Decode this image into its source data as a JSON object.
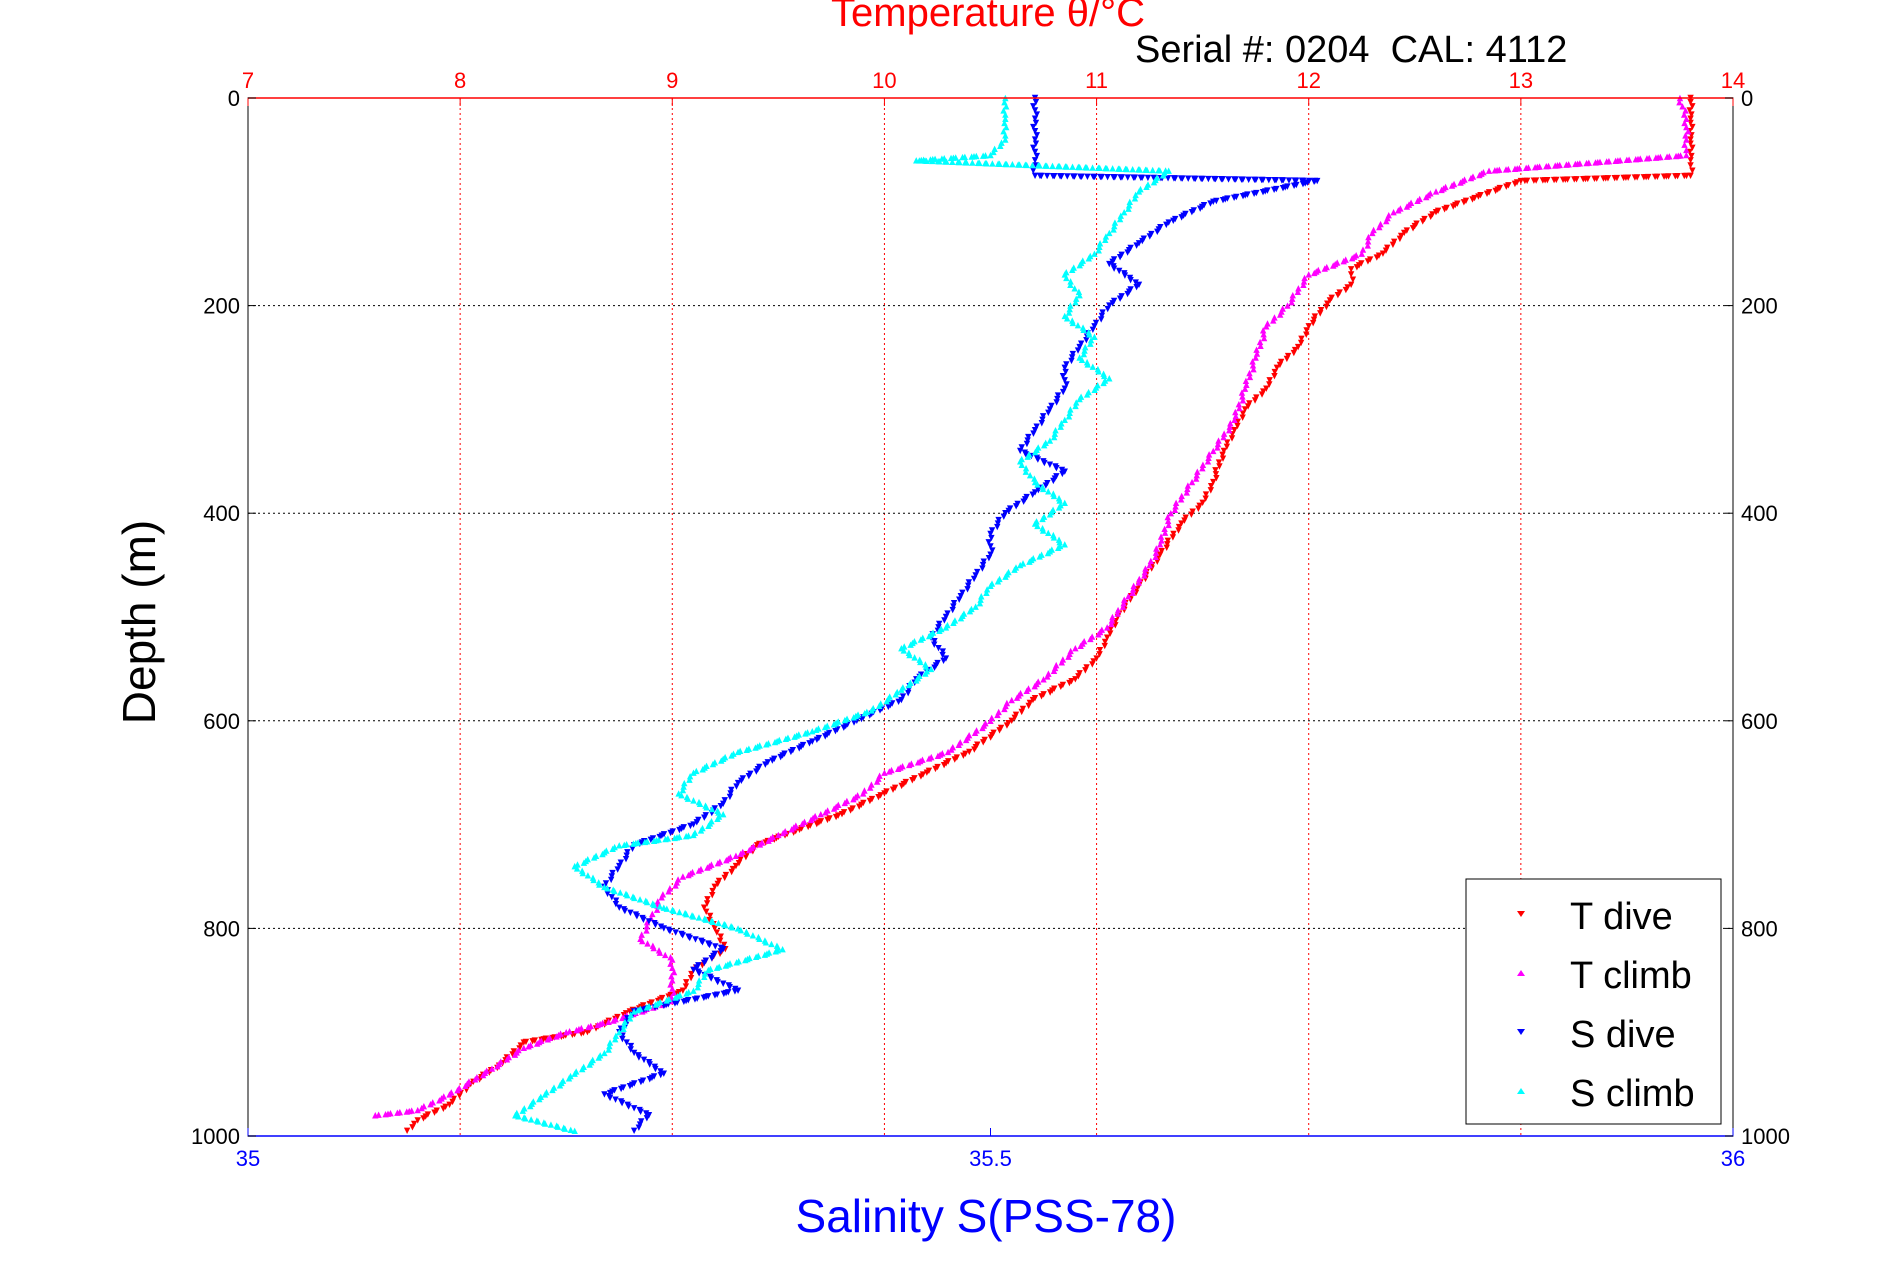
{
  "chart_data": {
    "type": "scatter",
    "title": "Temperature θ/°C",
    "subtitle": "Serial #: 0204  CAL: 4112",
    "xlabel_top": "Temperature θ/°C",
    "xlabel_bottom": "Salinity S(PSS-78)",
    "ylabel": "Depth (m)",
    "temperature_axis": {
      "range": [
        7,
        14
      ],
      "ticks": [
        7,
        8,
        9,
        10,
        11,
        12,
        13,
        14
      ],
      "color": "#ff0000"
    },
    "salinity_axis": {
      "range": [
        35,
        36
      ],
      "ticks": [
        35,
        35.5,
        36
      ],
      "tick_labels": [
        "35",
        "35.5",
        "36"
      ],
      "color": "#0000ff"
    },
    "depth_axis": {
      "range": [
        0,
        1000
      ],
      "ticks": [
        0,
        200,
        400,
        600,
        800,
        1000
      ],
      "reversed": true
    },
    "grid": true,
    "legend_position": "bottom-right",
    "series": [
      {
        "name": "T dive",
        "axis": "temperature",
        "marker": "triangle-down",
        "color": "#ff0000",
        "points": [
          [
            13.8,
            0
          ],
          [
            13.8,
            20
          ],
          [
            13.8,
            40
          ],
          [
            13.8,
            60
          ],
          [
            13.8,
            75
          ],
          [
            13.0,
            80
          ],
          [
            12.8,
            95
          ],
          [
            12.6,
            110
          ],
          [
            12.45,
            130
          ],
          [
            12.35,
            150
          ],
          [
            12.2,
            165
          ],
          [
            12.2,
            180
          ],
          [
            12.1,
            195
          ],
          [
            12.0,
            220
          ],
          [
            11.95,
            240
          ],
          [
            11.85,
            260
          ],
          [
            11.8,
            280
          ],
          [
            11.7,
            300
          ],
          [
            11.65,
            320
          ],
          [
            11.6,
            340
          ],
          [
            11.55,
            370
          ],
          [
            11.5,
            390
          ],
          [
            11.4,
            410
          ],
          [
            11.3,
            440
          ],
          [
            11.2,
            470
          ],
          [
            11.1,
            500
          ],
          [
            11.05,
            520
          ],
          [
            11.0,
            540
          ],
          [
            10.9,
            560
          ],
          [
            10.7,
            580
          ],
          [
            10.6,
            600
          ],
          [
            10.4,
            630
          ],
          [
            10.2,
            650
          ],
          [
            10.0,
            670
          ],
          [
            9.8,
            690
          ],
          [
            9.6,
            705
          ],
          [
            9.4,
            720
          ],
          [
            9.3,
            740
          ],
          [
            9.2,
            760
          ],
          [
            9.15,
            780
          ],
          [
            9.2,
            800
          ],
          [
            9.25,
            820
          ],
          [
            9.1,
            840
          ],
          [
            9.05,
            860
          ],
          [
            8.8,
            880
          ],
          [
            8.6,
            900
          ],
          [
            8.3,
            910
          ],
          [
            8.2,
            930
          ],
          [
            8.05,
            950
          ],
          [
            7.95,
            970
          ],
          [
            7.8,
            985
          ],
          [
            7.75,
            995
          ]
        ]
      },
      {
        "name": "T climb",
        "axis": "temperature",
        "marker": "triangle-up",
        "color": "#ff00ff",
        "points": [
          [
            13.75,
            0
          ],
          [
            13.78,
            20
          ],
          [
            13.78,
            40
          ],
          [
            13.78,
            55
          ],
          [
            12.85,
            70
          ],
          [
            12.6,
            90
          ],
          [
            12.4,
            110
          ],
          [
            12.3,
            130
          ],
          [
            12.25,
            150
          ],
          [
            12.0,
            170
          ],
          [
            11.9,
            200
          ],
          [
            11.8,
            220
          ],
          [
            11.75,
            250
          ],
          [
            11.7,
            280
          ],
          [
            11.65,
            310
          ],
          [
            11.55,
            340
          ],
          [
            11.45,
            370
          ],
          [
            11.35,
            400
          ],
          [
            11.3,
            430
          ],
          [
            11.25,
            450
          ],
          [
            11.15,
            480
          ],
          [
            11.05,
            510
          ],
          [
            10.9,
            530
          ],
          [
            10.75,
            560
          ],
          [
            10.6,
            580
          ],
          [
            10.5,
            600
          ],
          [
            10.3,
            630
          ],
          [
            10.0,
            650
          ],
          [
            9.9,
            670
          ],
          [
            9.7,
            690
          ],
          [
            9.5,
            710
          ],
          [
            9.3,
            730
          ],
          [
            9.05,
            750
          ],
          [
            8.95,
            770
          ],
          [
            8.9,
            790
          ],
          [
            8.85,
            810
          ],
          [
            9.0,
            830
          ],
          [
            9.0,
            850
          ],
          [
            9.0,
            870
          ],
          [
            8.7,
            890
          ],
          [
            8.5,
            900
          ],
          [
            8.3,
            915
          ],
          [
            8.15,
            935
          ],
          [
            7.95,
            960
          ],
          [
            7.8,
            975
          ],
          [
            7.6,
            980
          ]
        ]
      },
      {
        "name": "S dive",
        "axis": "salinity",
        "marker": "triangle-down",
        "color": "#0000ff",
        "points": [
          [
            35.53,
            0
          ],
          [
            35.53,
            20
          ],
          [
            35.53,
            40
          ],
          [
            35.53,
            60
          ],
          [
            35.53,
            75
          ],
          [
            35.72,
            80
          ],
          [
            35.65,
            100
          ],
          [
            35.62,
            120
          ],
          [
            35.6,
            140
          ],
          [
            35.58,
            160
          ],
          [
            35.6,
            180
          ],
          [
            35.58,
            200
          ],
          [
            35.57,
            220
          ],
          [
            35.56,
            240
          ],
          [
            35.55,
            260
          ],
          [
            35.55,
            280
          ],
          [
            35.54,
            300
          ],
          [
            35.53,
            320
          ],
          [
            35.52,
            340
          ],
          [
            35.55,
            360
          ],
          [
            35.53,
            380
          ],
          [
            35.51,
            400
          ],
          [
            35.5,
            420
          ],
          [
            35.5,
            440
          ],
          [
            35.49,
            460
          ],
          [
            35.48,
            480
          ],
          [
            35.47,
            500
          ],
          [
            35.46,
            520
          ],
          [
            35.47,
            540
          ],
          [
            35.45,
            560
          ],
          [
            35.44,
            580
          ],
          [
            35.41,
            600
          ],
          [
            35.38,
            620
          ],
          [
            35.35,
            640
          ],
          [
            35.33,
            660
          ],
          [
            35.32,
            680
          ],
          [
            35.3,
            700
          ],
          [
            35.26,
            720
          ],
          [
            35.25,
            740
          ],
          [
            35.24,
            760
          ],
          [
            35.25,
            780
          ],
          [
            35.28,
            800
          ],
          [
            35.32,
            820
          ],
          [
            35.3,
            840
          ],
          [
            35.33,
            860
          ],
          [
            35.26,
            880
          ],
          [
            35.25,
            900
          ],
          [
            35.26,
            920
          ],
          [
            35.28,
            940
          ],
          [
            35.24,
            960
          ],
          [
            35.27,
            980
          ],
          [
            35.26,
            995
          ]
        ]
      },
      {
        "name": "S climb",
        "axis": "salinity",
        "marker": "triangle-up",
        "color": "#00ffff",
        "points": [
          [
            35.51,
            0
          ],
          [
            35.51,
            20
          ],
          [
            35.51,
            40
          ],
          [
            35.5,
            55
          ],
          [
            35.45,
            60
          ],
          [
            35.62,
            70
          ],
          [
            35.6,
            90
          ],
          [
            35.59,
            110
          ],
          [
            35.58,
            130
          ],
          [
            35.57,
            150
          ],
          [
            35.55,
            170
          ],
          [
            35.56,
            190
          ],
          [
            35.55,
            210
          ],
          [
            35.57,
            230
          ],
          [
            35.56,
            250
          ],
          [
            35.58,
            270
          ],
          [
            35.56,
            290
          ],
          [
            35.55,
            310
          ],
          [
            35.54,
            330
          ],
          [
            35.52,
            350
          ],
          [
            35.53,
            370
          ],
          [
            35.55,
            390
          ],
          [
            35.53,
            410
          ],
          [
            35.55,
            430
          ],
          [
            35.52,
            450
          ],
          [
            35.5,
            470
          ],
          [
            35.49,
            490
          ],
          [
            35.47,
            510
          ],
          [
            35.44,
            530
          ],
          [
            35.46,
            550
          ],
          [
            35.44,
            570
          ],
          [
            35.42,
            590
          ],
          [
            35.38,
            610
          ],
          [
            35.33,
            630
          ],
          [
            35.3,
            650
          ],
          [
            35.29,
            670
          ],
          [
            35.32,
            690
          ],
          [
            35.3,
            710
          ],
          [
            35.25,
            720
          ],
          [
            35.22,
            740
          ],
          [
            35.24,
            760
          ],
          [
            35.28,
            780
          ],
          [
            35.33,
            800
          ],
          [
            35.36,
            820
          ],
          [
            35.31,
            840
          ],
          [
            35.3,
            860
          ],
          [
            35.26,
            880
          ],
          [
            35.25,
            900
          ],
          [
            35.24,
            920
          ],
          [
            35.22,
            940
          ],
          [
            35.2,
            960
          ],
          [
            35.18,
            980
          ],
          [
            35.22,
            995
          ]
        ]
      }
    ]
  }
}
